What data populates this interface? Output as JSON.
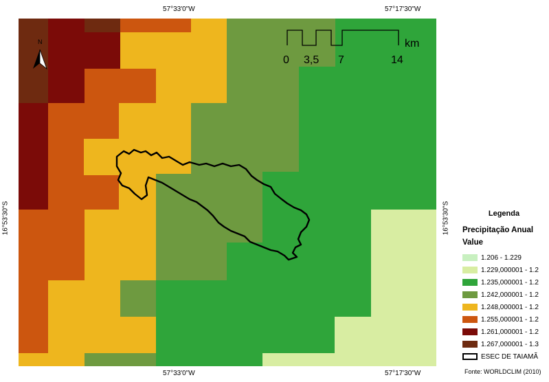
{
  "map": {
    "coords": {
      "top_left": "57°33'0\"W",
      "top_right": "57°17'30\"W",
      "bottom_left": "57°33'0\"W",
      "bottom_right": "57°17'30\"W",
      "left": "16°53'30\"S",
      "right": "16°53'30\"S"
    },
    "north_label": "N",
    "scale": {
      "unit": "km",
      "ticks": [
        "0",
        "3,5",
        "7",
        "14"
      ]
    }
  },
  "legend": {
    "title": "Legenda",
    "subtitle": "Precipitação Anual",
    "field": "Value",
    "items": [
      {
        "label": "1.206 - 1.229",
        "color": "#c8f0c0"
      },
      {
        "label": "1.229,000001 - 1.2",
        "color": "#d8eda2"
      },
      {
        "label": "1.235,000001 - 1.2",
        "color": "#2fa53a"
      },
      {
        "label": "1.242,000001 - 1.2",
        "color": "#6e9a40"
      },
      {
        "label": "1.248,000001 - 1.2",
        "color": "#eeb61e"
      },
      {
        "label": "1.255,000001 - 1.2",
        "color": "#cc560f"
      },
      {
        "label": "1.261,000001 - 1.2",
        "color": "#7b0b08"
      },
      {
        "label": "1.267,000001 - 1.3",
        "color": "#6e2a10"
      }
    ],
    "boundary_label": "ESEC DE TAIAMÃ"
  },
  "source": "Fonte: WORLDCLIM (2010)"
}
